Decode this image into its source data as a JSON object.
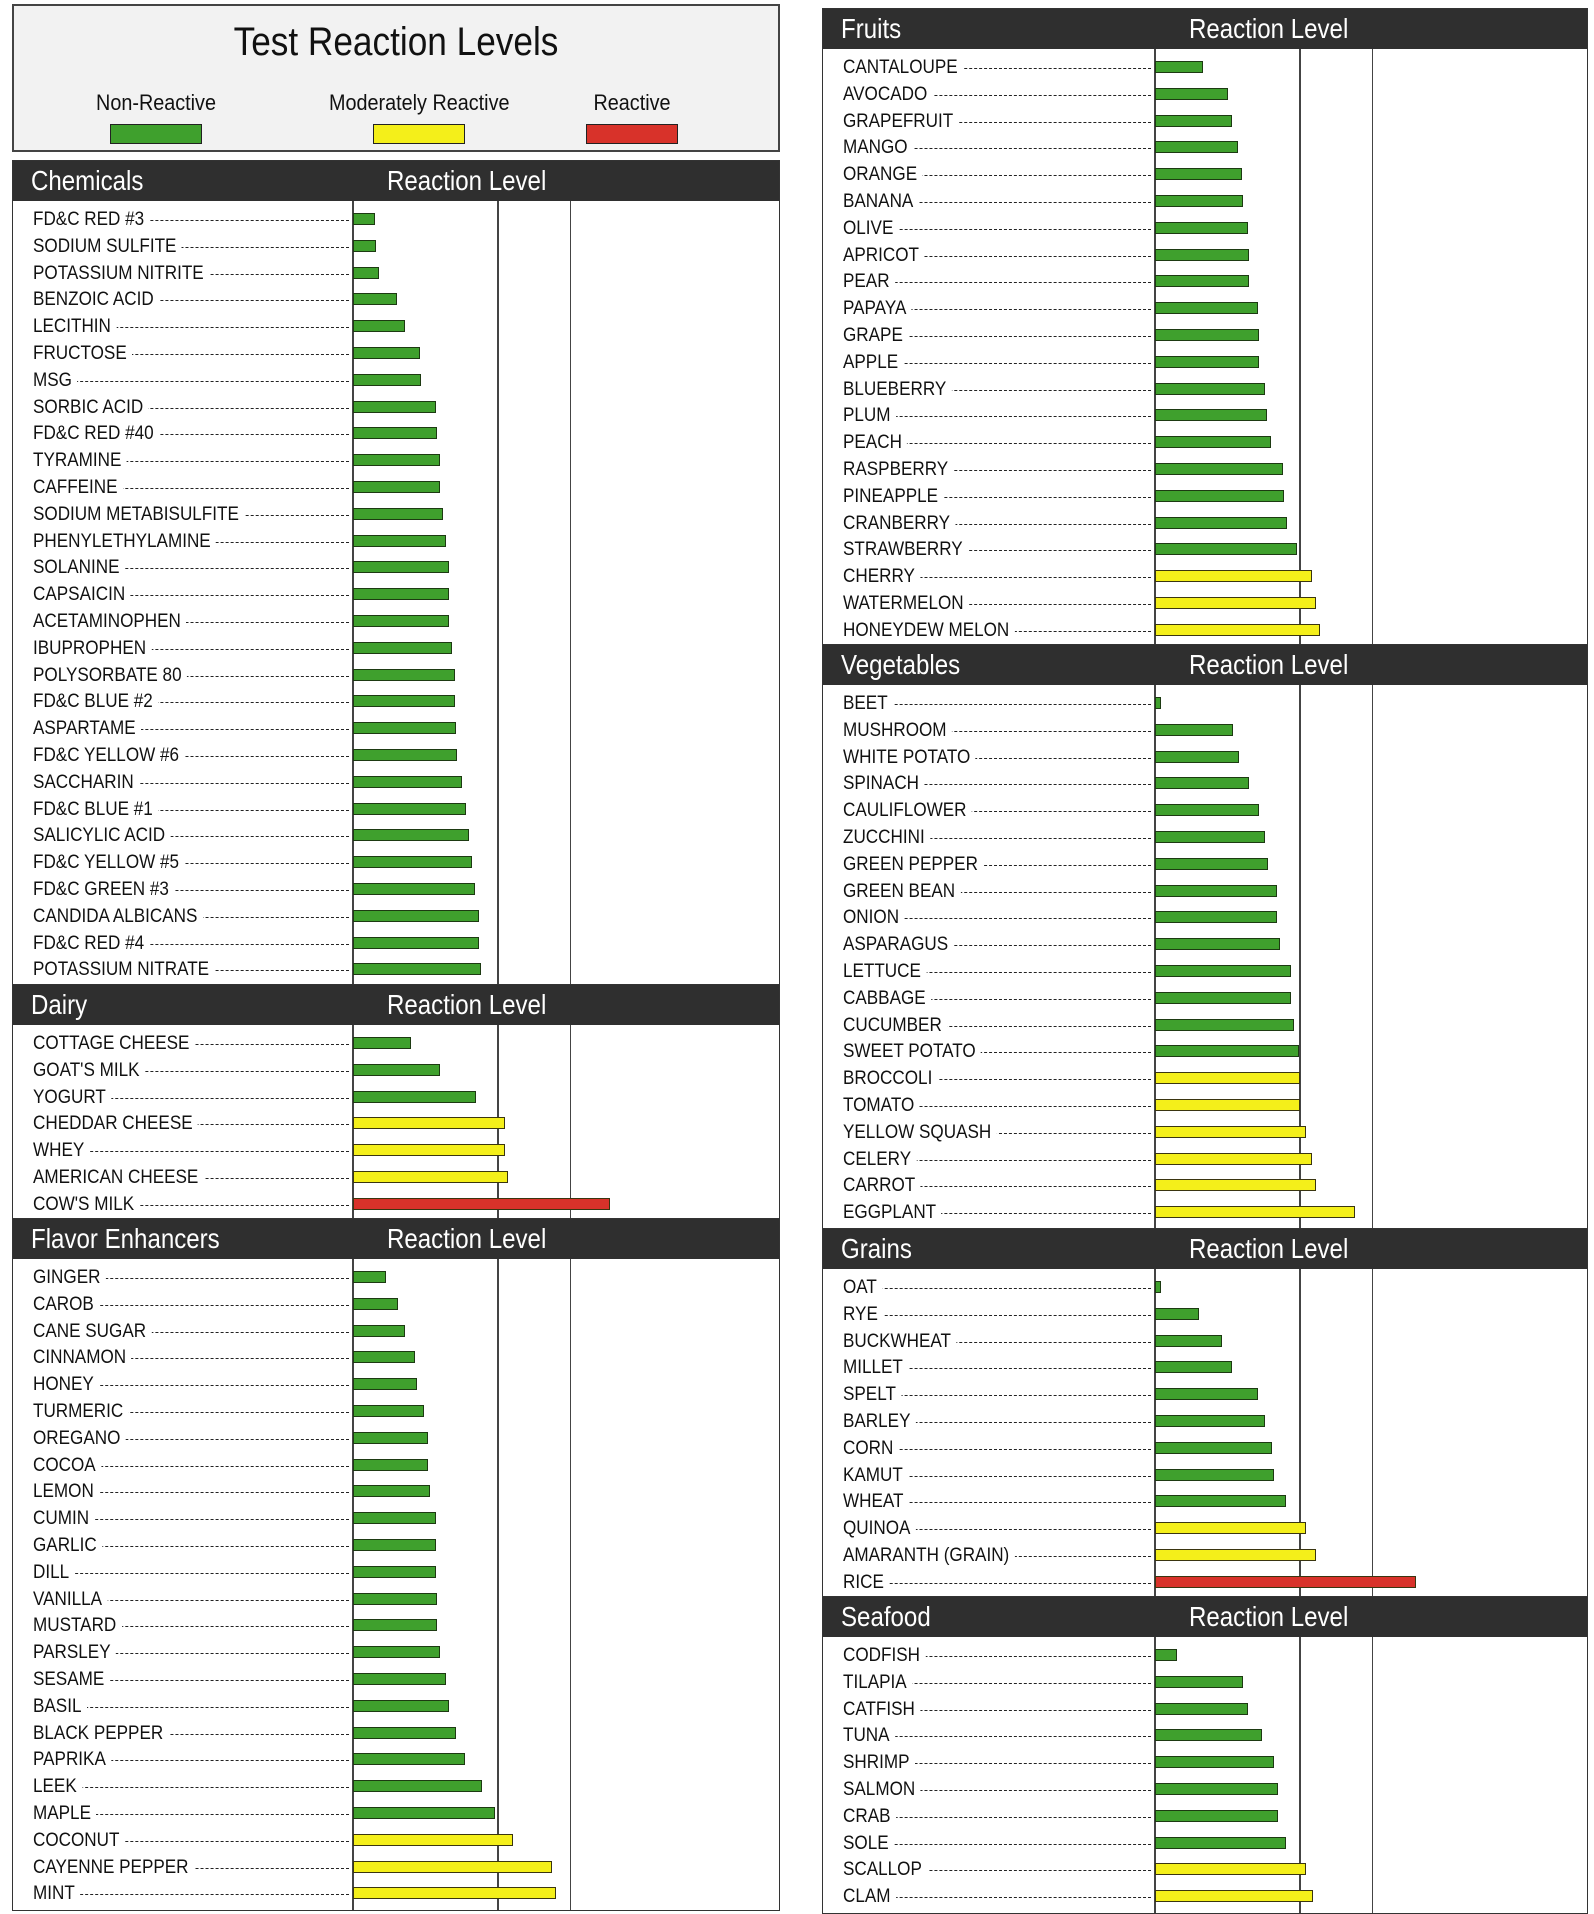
{
  "legend": {
    "title": "Test Reaction Levels",
    "items": [
      {
        "label": "Non-Reactive",
        "color": "#3fa02d"
      },
      {
        "label": "Moderately Reactive",
        "color": "#f4ef1a"
      },
      {
        "label": "Reactive",
        "color": "#d8322a"
      }
    ]
  },
  "level_colors": {
    "N": "#3fa02d",
    "M": "#f4ef1a",
    "R": "#d8322a"
  },
  "chart_data": [
    {
      "type": "bar",
      "title": "Chemicals",
      "value_label": "Reaction Level",
      "categories": [
        "FD&C RED #3",
        "SODIUM SULFITE",
        "POTASSIUM NITRITE",
        "BENZOIC ACID",
        "LECITHIN",
        "FRUCTOSE",
        "MSG",
        "SORBIC ACID",
        "FD&C RED #40",
        "TYRAMINE",
        "CAFFEINE",
        "SODIUM METABISULFITE",
        "PHENYLETHYLAMINE",
        "SOLANINE",
        "CAPSAICIN",
        "ACETAMINOPHEN",
        "IBUPROPHEN",
        "POLYSORBATE 80",
        "FD&C BLUE #2",
        "ASPARTAME",
        "FD&C YELLOW #6",
        "SACCHARIN",
        "FD&C BLUE #1",
        "SALICYLIC ACID",
        "FD&C YELLOW #5",
        "FD&C GREEN #3",
        "CANDIDA ALBICANS",
        "FD&C RED #4",
        "POTASSIUM NITRATE"
      ],
      "values": [
        0.15,
        0.16,
        0.18,
        0.3,
        0.36,
        0.46,
        0.47,
        0.57,
        0.58,
        0.6,
        0.6,
        0.62,
        0.64,
        0.66,
        0.66,
        0.66,
        0.68,
        0.7,
        0.7,
        0.71,
        0.72,
        0.75,
        0.78,
        0.8,
        0.82,
        0.84,
        0.87,
        0.87,
        0.88
      ],
      "levels": [
        "N",
        "N",
        "N",
        "N",
        "N",
        "N",
        "N",
        "N",
        "N",
        "N",
        "N",
        "N",
        "N",
        "N",
        "N",
        "N",
        "N",
        "N",
        "N",
        "N",
        "N",
        "N",
        "N",
        "N",
        "N",
        "N",
        "N",
        "N",
        "N"
      ]
    },
    {
      "type": "bar",
      "title": "Dairy",
      "value_label": "Reaction Level",
      "categories": [
        "COTTAGE CHEESE",
        "GOAT'S MILK",
        "YOGURT",
        "CHEDDAR CHEESE",
        "WHEY",
        "AMERICAN CHEESE",
        "COW'S MILK"
      ],
      "values": [
        0.4,
        0.6,
        0.85,
        1.05,
        1.05,
        1.07,
        1.77
      ],
      "levels": [
        "N",
        "N",
        "N",
        "M",
        "M",
        "M",
        "R"
      ]
    },
    {
      "type": "bar",
      "title": "Flavor Enhancers",
      "value_label": "Reaction Level",
      "categories": [
        "GINGER",
        "CAROB",
        "CANE SUGAR",
        "CINNAMON",
        "HONEY",
        "TURMERIC",
        "OREGANO",
        "COCOA",
        "LEMON",
        "CUMIN",
        "GARLIC",
        "DILL",
        "VANILLA",
        "MUSTARD",
        "PARSLEY",
        "SESAME",
        "BASIL",
        "BLACK PEPPER",
        "PAPRIKA",
        "LEEK",
        "MAPLE",
        "COCONUT",
        "CAYENNE PEPPER",
        "MINT"
      ],
      "values": [
        0.23,
        0.31,
        0.36,
        0.43,
        0.44,
        0.49,
        0.52,
        0.52,
        0.53,
        0.57,
        0.57,
        0.57,
        0.58,
        0.58,
        0.6,
        0.64,
        0.66,
        0.71,
        0.77,
        0.89,
        0.98,
        1.1,
        1.37,
        1.4
      ],
      "levels": [
        "N",
        "N",
        "N",
        "N",
        "N",
        "N",
        "N",
        "N",
        "N",
        "N",
        "N",
        "N",
        "N",
        "N",
        "N",
        "N",
        "N",
        "N",
        "N",
        "N",
        "N",
        "M",
        "M",
        "M"
      ]
    },
    {
      "type": "bar",
      "title": "Fruits",
      "value_label": "Reaction Level",
      "categories": [
        "CANTALOUPE",
        "AVOCADO",
        "GRAPEFRUIT",
        "MANGO",
        "ORANGE",
        "BANANA",
        "OLIVE",
        "APRICOT",
        "PEAR",
        "PAPAYA",
        "GRAPE",
        "APPLE",
        "BLUEBERRY",
        "PLUM",
        "PEACH",
        "RASPBERRY",
        "PINEAPPLE",
        "CRANBERRY",
        "STRAWBERRY",
        "CHERRY",
        "WATERMELON",
        "HONEYDEW MELON"
      ],
      "values": [
        0.33,
        0.5,
        0.53,
        0.57,
        0.6,
        0.61,
        0.64,
        0.65,
        0.65,
        0.71,
        0.72,
        0.72,
        0.76,
        0.77,
        0.8,
        0.88,
        0.89,
        0.91,
        0.98,
        1.08,
        1.11,
        1.14
      ],
      "levels": [
        "N",
        "N",
        "N",
        "N",
        "N",
        "N",
        "N",
        "N",
        "N",
        "N",
        "N",
        "N",
        "N",
        "N",
        "N",
        "N",
        "N",
        "N",
        "N",
        "M",
        "M",
        "M"
      ]
    },
    {
      "type": "bar",
      "title": "Vegetables",
      "value_label": "Reaction Level",
      "categories": [
        "BEET",
        "MUSHROOM",
        "WHITE POTATO",
        "SPINACH",
        "CAULIFLOWER",
        "ZUCCHINI",
        "GREEN PEPPER",
        "GREEN BEAN",
        "ONION",
        "ASPARAGUS",
        "LETTUCE",
        "CABBAGE",
        "CUCUMBER",
        "SWEET POTATO",
        "BROCCOLI",
        "TOMATO",
        "YELLOW SQUASH",
        "CELERY",
        "CARROT",
        "EGGPLANT"
      ],
      "values": [
        0.04,
        0.54,
        0.58,
        0.65,
        0.72,
        0.76,
        0.78,
        0.84,
        0.84,
        0.86,
        0.94,
        0.94,
        0.96,
        0.99,
        1.0,
        1.0,
        1.04,
        1.08,
        1.11,
        1.38
      ],
      "levels": [
        "N",
        "N",
        "N",
        "N",
        "N",
        "N",
        "N",
        "N",
        "N",
        "N",
        "N",
        "N",
        "N",
        "N",
        "M",
        "M",
        "M",
        "M",
        "M",
        "M"
      ]
    },
    {
      "type": "bar",
      "title": "Grains",
      "value_label": "Reaction Level",
      "categories": [
        "OAT",
        "RYE",
        "BUCKWHEAT",
        "MILLET",
        "SPELT",
        "BARLEY",
        "CORN",
        "KAMUT",
        "WHEAT",
        "QUINOA",
        "AMARANTH (GRAIN)",
        "RICE"
      ],
      "values": [
        0.04,
        0.3,
        0.46,
        0.53,
        0.71,
        0.76,
        0.81,
        0.82,
        0.9,
        1.04,
        1.11,
        1.8
      ],
      "levels": [
        "N",
        "N",
        "N",
        "N",
        "N",
        "N",
        "N",
        "N",
        "N",
        "M",
        "M",
        "R"
      ]
    },
    {
      "type": "bar",
      "title": "Seafood",
      "value_label": "Reaction Level",
      "categories": [
        "CODFISH",
        "TILAPIA",
        "CATFISH",
        "TUNA",
        "SHRIMP",
        "SALMON",
        "CRAB",
        "SOLE",
        "SCALLOP",
        "CLAM"
      ],
      "values": [
        0.15,
        0.61,
        0.64,
        0.74,
        0.82,
        0.85,
        0.85,
        0.9,
        1.04,
        1.09
      ],
      "levels": [
        "N",
        "N",
        "N",
        "N",
        "N",
        "N",
        "N",
        "N",
        "M",
        "M"
      ]
    }
  ]
}
